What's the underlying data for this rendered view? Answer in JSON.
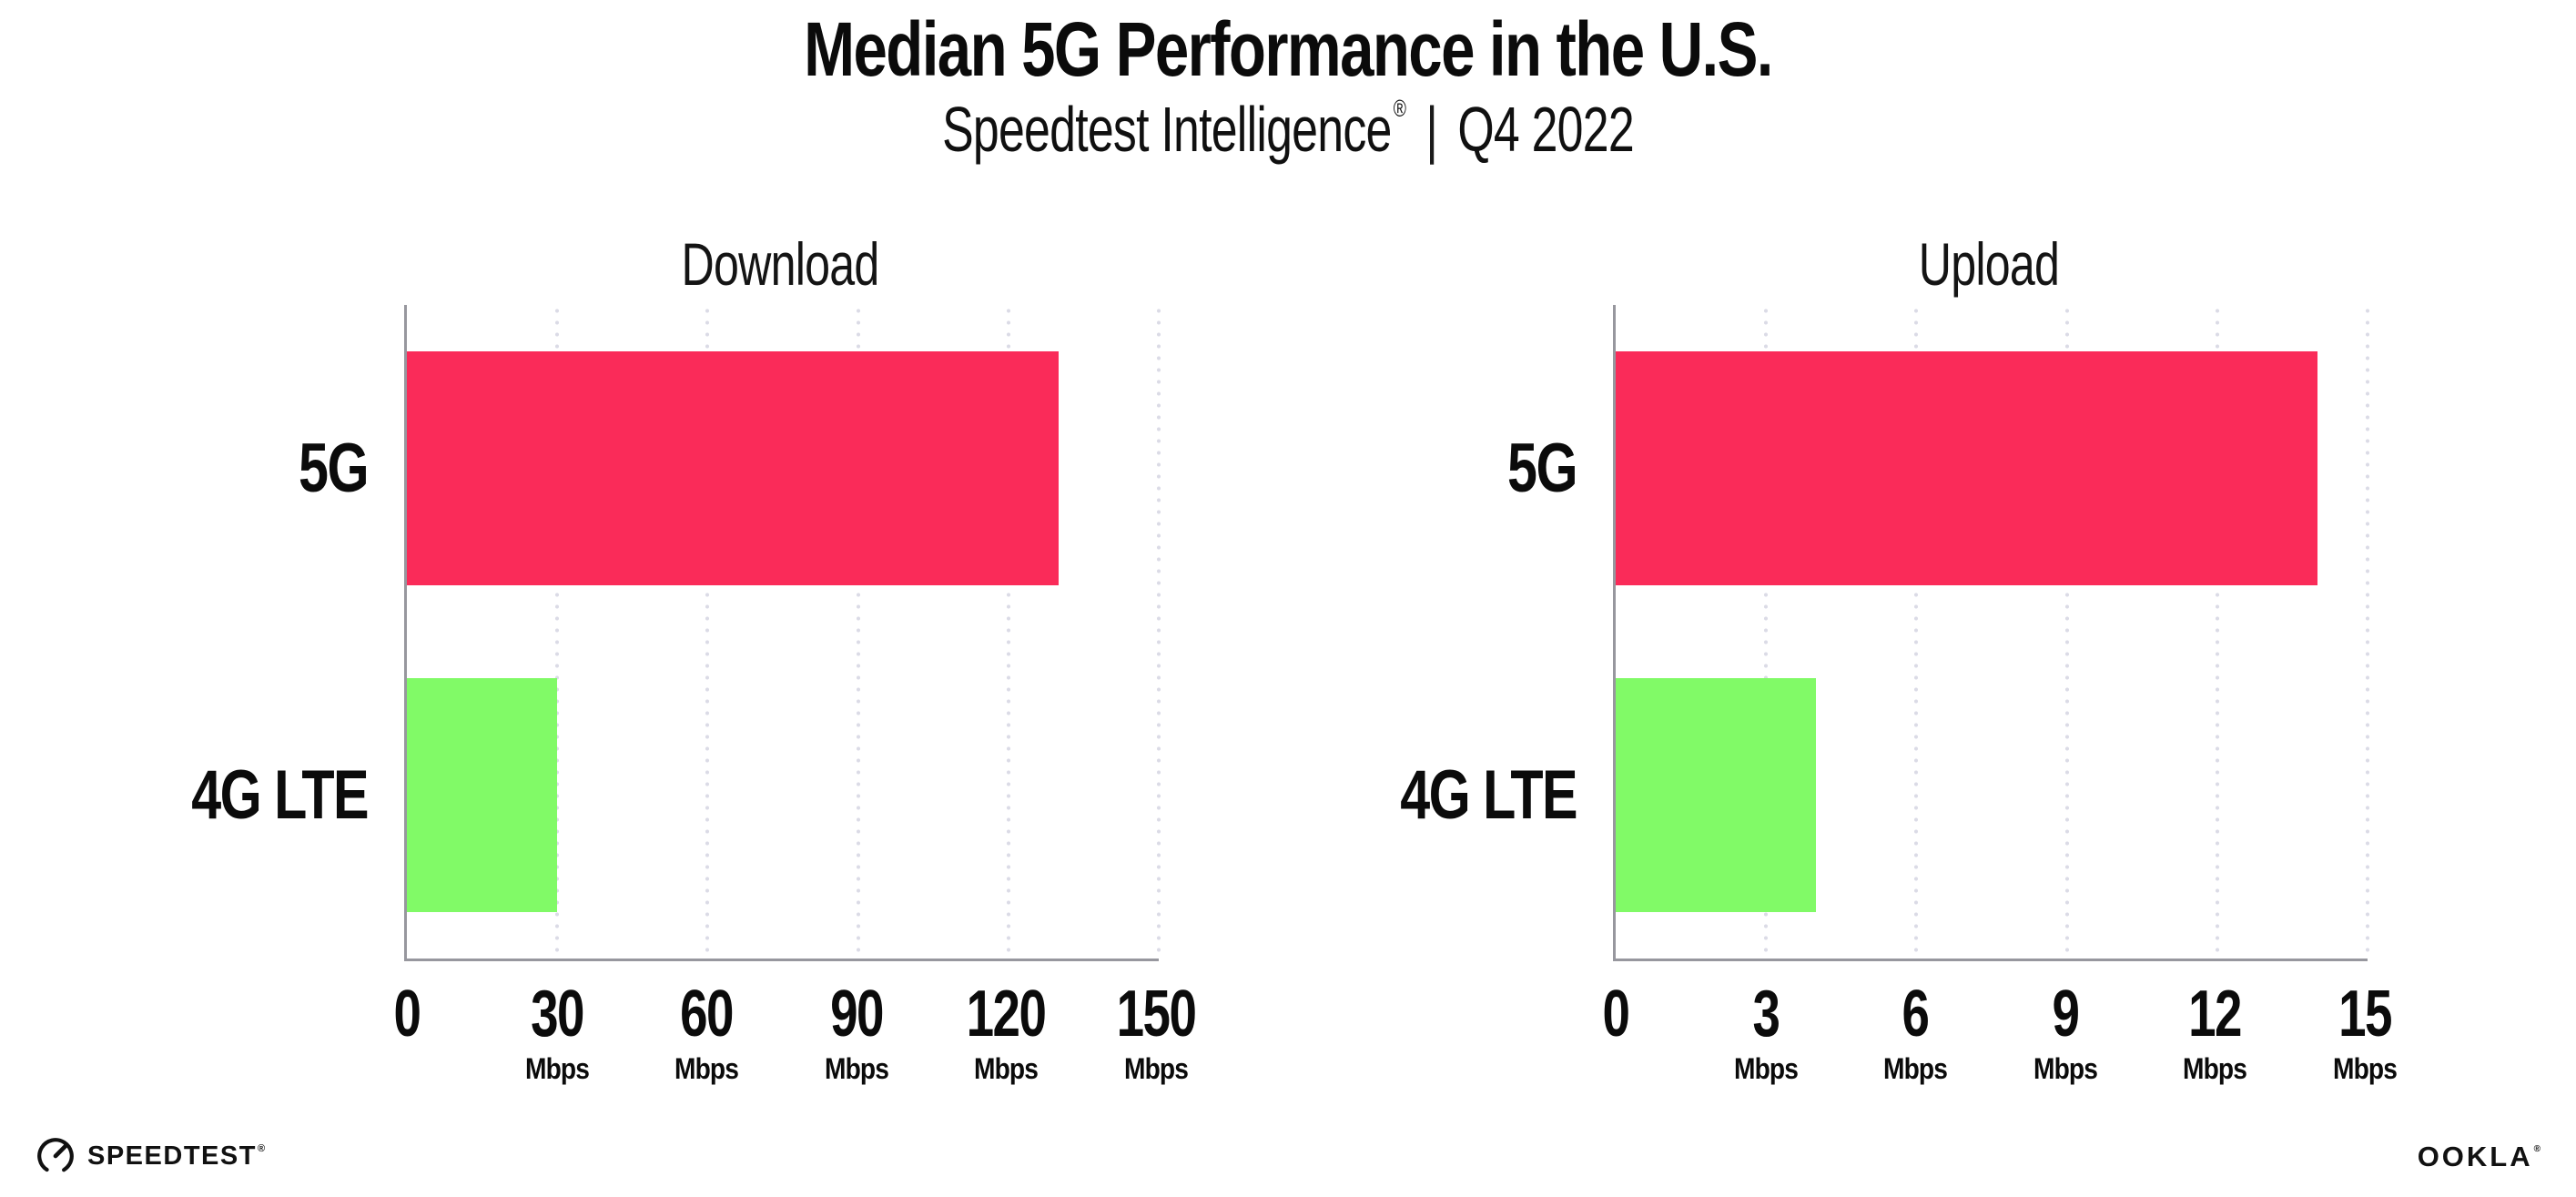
{
  "header": {
    "title": "Median 5G Performance in the U.S.",
    "subtitle_brand": "Speedtest Intelligence",
    "subtitle_reg": "®",
    "subtitle_sep": "|",
    "subtitle_period": "Q4 2022"
  },
  "chart_data": [
    {
      "type": "bar",
      "orientation": "horizontal",
      "title": "Download",
      "categories": [
        "5G",
        "4G LTE"
      ],
      "values": [
        130,
        30
      ],
      "unit": "Mbps",
      "xlim": [
        0,
        150
      ],
      "xticks": [
        0,
        30,
        60,
        90,
        120,
        150
      ],
      "bar_colors": [
        "#FA2B59",
        "#81FA67"
      ],
      "grid": "dotted-vertical-gridlines",
      "legend": "none"
    },
    {
      "type": "bar",
      "orientation": "horizontal",
      "title": "Upload",
      "categories": [
        "5G",
        "4G LTE"
      ],
      "values": [
        14,
        4
      ],
      "unit": "Mbps",
      "xlim": [
        0,
        15
      ],
      "xticks": [
        0,
        3,
        6,
        9,
        12,
        15
      ],
      "bar_colors": [
        "#FA2B59",
        "#81FA67"
      ],
      "grid": "dotted-vertical-gridlines",
      "legend": "none"
    }
  ],
  "footer": {
    "speedtest_label": "SPEEDTEST",
    "speedtest_tm": "®",
    "ookla_label": "OOKLA",
    "ookla_tm": "®"
  },
  "colors": {
    "bar_5g": "#FA2B59",
    "bar_4g_lte": "#81FA67",
    "axis_line": "#97979e",
    "gridline_dot": "#dbdbe6",
    "text": "#0b0b0b",
    "background": "#ffffff"
  }
}
